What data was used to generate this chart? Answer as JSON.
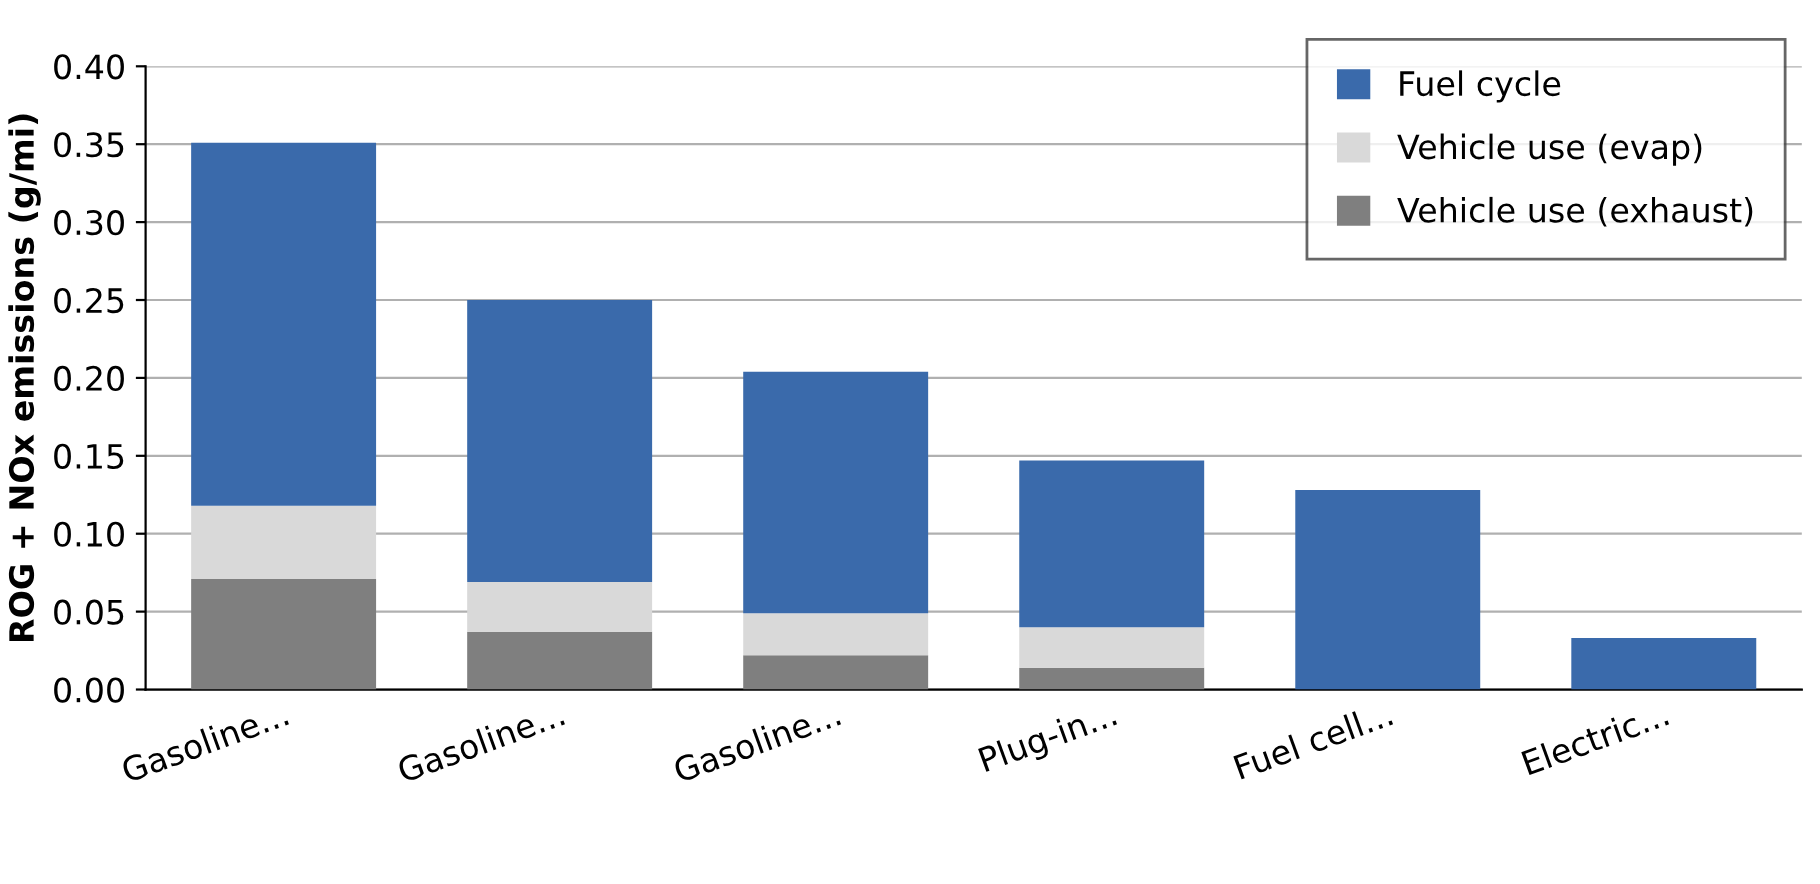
{
  "chart_data": {
    "type": "bar",
    "stacked": true,
    "ylabel": "ROG + NOx emissions (g/mi)",
    "categories": [
      "Gasoline...",
      "Gasoline...",
      "Gasoline...",
      "Plug-in...",
      "Fuel cell...",
      "Electric..."
    ],
    "series": [
      {
        "name": "Vehicle use (exhaust)",
        "color": "#7f7f7f",
        "values": [
          0.071,
          0.037,
          0.022,
          0.014,
          0,
          0
        ]
      },
      {
        "name": "Vehicle use (evap)",
        "color": "#d9d9d9",
        "values": [
          0.047,
          0.032,
          0.027,
          0.026,
          0,
          0
        ]
      },
      {
        "name": "Fuel cycle",
        "color": "#3a6aab",
        "values": [
          0.233,
          0.181,
          0.155,
          0.107,
          0.128,
          0.033
        ]
      }
    ],
    "ylim": [
      0,
      0.4
    ],
    "yticks": [
      {
        "value": 0,
        "label": "0.00"
      },
      {
        "value": 0.05,
        "label": "0.05"
      },
      {
        "value": 0.1,
        "label": "0.10"
      },
      {
        "value": 0.15,
        "label": "0.15"
      },
      {
        "value": 0.2,
        "label": "0.20"
      },
      {
        "value": 0.25,
        "label": "0.25"
      },
      {
        "value": 0.3,
        "label": "0.30"
      },
      {
        "value": 0.35,
        "label": "0.35"
      },
      {
        "value": 0.4,
        "label": "0.40"
      }
    ],
    "grid": "y",
    "legend": "top right"
  }
}
